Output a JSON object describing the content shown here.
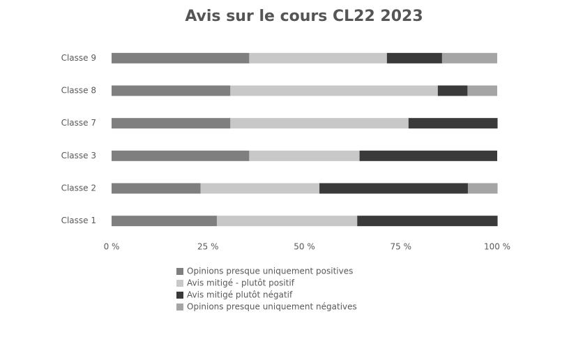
{
  "chart_data": {
    "type": "stacked-bar-horizontal",
    "title": "Avis sur le cours CL22 2023",
    "categories": [
      "Classe 9",
      "Classe 8",
      "Classe 7",
      "Classe 3",
      "Classe 2",
      "Classe 1"
    ],
    "series": [
      {
        "name": "Opinions presque uniquement positives",
        "color": "#7f7f7f",
        "values": [
          35.7,
          30.8,
          30.8,
          35.7,
          23.1,
          27.3
        ]
      },
      {
        "name": "Avis mitigé - plutôt positif",
        "color": "#c8c8c8",
        "values": [
          35.7,
          53.8,
          46.2,
          28.6,
          30.8,
          36.4
        ]
      },
      {
        "name": "Avis mitigé plutôt négatif",
        "color": "#3a3a3a",
        "values": [
          14.3,
          7.7,
          23.1,
          35.7,
          38.5,
          36.4
        ]
      },
      {
        "name": "Opinions presque uniquement négatives",
        "color": "#a5a5a5",
        "values": [
          14.3,
          7.7,
          0,
          0,
          7.7,
          0
        ]
      }
    ],
    "xlim": [
      0,
      100
    ],
    "xticks": [
      {
        "value": 0,
        "label": "0 %"
      },
      {
        "value": 25,
        "label": "25 %"
      },
      {
        "value": 50,
        "label": "50 %"
      },
      {
        "value": 75,
        "label": "75 %"
      },
      {
        "value": 100,
        "label": "100 %"
      }
    ]
  }
}
